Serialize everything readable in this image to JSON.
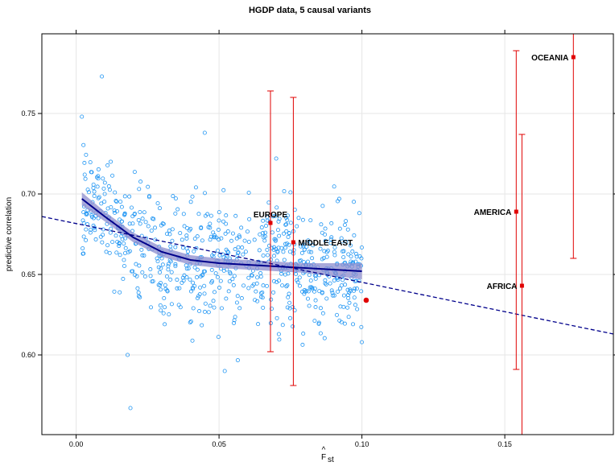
{
  "chart_data": {
    "type": "scatter",
    "title": "HGDP data, 5 causal variants",
    "xlabel": "F_st (hat)",
    "ylabel": "predictive correlation",
    "xlim": [
      -0.012,
      0.188
    ],
    "ylim": [
      0.5505,
      0.7995
    ],
    "x_ticks": [
      0.0,
      0.05,
      0.1,
      0.15
    ],
    "x_tick_labels": [
      "0.00",
      "0.05",
      "0.10",
      "0.15"
    ],
    "y_ticks": [
      0.6,
      0.65,
      0.7,
      0.75
    ],
    "y_tick_labels": [
      "0.60",
      "0.65",
      "0.70",
      "0.75"
    ],
    "grid": true,
    "colors": {
      "points": "#2196f3",
      "regions": "#e00000",
      "smooth_line": "#00008b",
      "smooth_band": "#8c8ccd",
      "grid": "#e6e6e6"
    },
    "scatter_point_count": 750,
    "scatter_sample": [
      [
        0.002,
        0.748
      ],
      [
        0.003,
        0.712
      ],
      [
        0.004,
        0.69
      ],
      [
        0.005,
        0.676
      ],
      [
        0.009,
        0.773
      ],
      [
        0.01,
        0.7
      ],
      [
        0.018,
        0.6
      ],
      [
        0.019,
        0.567
      ],
      [
        0.03,
        0.66
      ],
      [
        0.045,
        0.738
      ],
      [
        0.052,
        0.59
      ],
      [
        0.07,
        0.722
      ],
      [
        0.075,
        0.701
      ],
      [
        0.085,
        0.62
      ],
      [
        0.095,
        0.655
      ],
      [
        0.099,
        0.646
      ]
    ],
    "smooth_fit": {
      "x": [
        0.002,
        0.01,
        0.02,
        0.03,
        0.04,
        0.05,
        0.06,
        0.07,
        0.08,
        0.09,
        0.1
      ],
      "y": [
        0.697,
        0.686,
        0.673,
        0.664,
        0.659,
        0.657,
        0.656,
        0.655,
        0.654,
        0.653,
        0.652
      ],
      "band": [
        0.004,
        0.003,
        0.003,
        0.003,
        0.003,
        0.003,
        0.003,
        0.003,
        0.003,
        0.004,
        0.005
      ]
    },
    "regression_line": {
      "x": [
        -0.012,
        0.188
      ],
      "y": [
        0.686,
        0.613
      ]
    },
    "highlight_point": {
      "x": 0.1015,
      "y": 0.634
    },
    "regions": [
      {
        "name": "EUROPE",
        "x": 0.068,
        "y": 0.682,
        "low": 0.602,
        "high": 0.764
      },
      {
        "name": "MIDDLE EAST",
        "x": 0.076,
        "y": 0.67,
        "low": 0.581,
        "high": 0.76
      },
      {
        "name": "AMERICA",
        "x": 0.154,
        "y": 0.689,
        "low": 0.591,
        "high": 0.789
      },
      {
        "name": "AFRICA",
        "x": 0.156,
        "y": 0.643,
        "low": 0.55,
        "high": 0.737
      },
      {
        "name": "OCEANIA",
        "x": 0.174,
        "y": 0.785,
        "low": 0.66,
        "high": 0.8
      }
    ]
  }
}
